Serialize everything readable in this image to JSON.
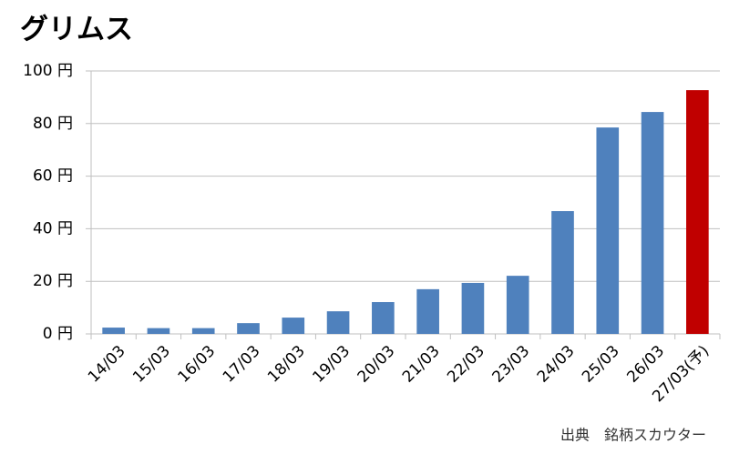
{
  "chart_data": {
    "type": "bar",
    "title": "グリムス",
    "categories": [
      "14/03",
      "15/03",
      "16/03",
      "17/03",
      "18/03",
      "19/03",
      "20/03",
      "21/03",
      "22/03",
      "23/03",
      "24/03",
      "25/03",
      "26/03",
      "27/03(予)"
    ],
    "values": [
      2.4,
      2.2,
      2.2,
      4.1,
      6.2,
      8.6,
      12.1,
      17,
      19.4,
      22.1,
      46.7,
      78.5,
      84.4,
      92.7
    ],
    "colors": [
      "#4f81bd",
      "#4f81bd",
      "#4f81bd",
      "#4f81bd",
      "#4f81bd",
      "#4f81bd",
      "#4f81bd",
      "#4f81bd",
      "#4f81bd",
      "#4f81bd",
      "#4f81bd",
      "#4f81bd",
      "#4f81bd",
      "#c00000"
    ],
    "ylim": [
      0,
      100
    ],
    "yticks": [
      {
        "value": 0,
        "label": "0 円"
      },
      {
        "value": 20,
        "label": "20 円"
      },
      {
        "value": 40,
        "label": "40 円"
      },
      {
        "value": 60,
        "label": "60 円"
      },
      {
        "value": 80,
        "label": "80 円"
      },
      {
        "value": 100,
        "label": "100 円"
      }
    ],
    "grid": true,
    "source": "出典　銘柄スカウター"
  }
}
